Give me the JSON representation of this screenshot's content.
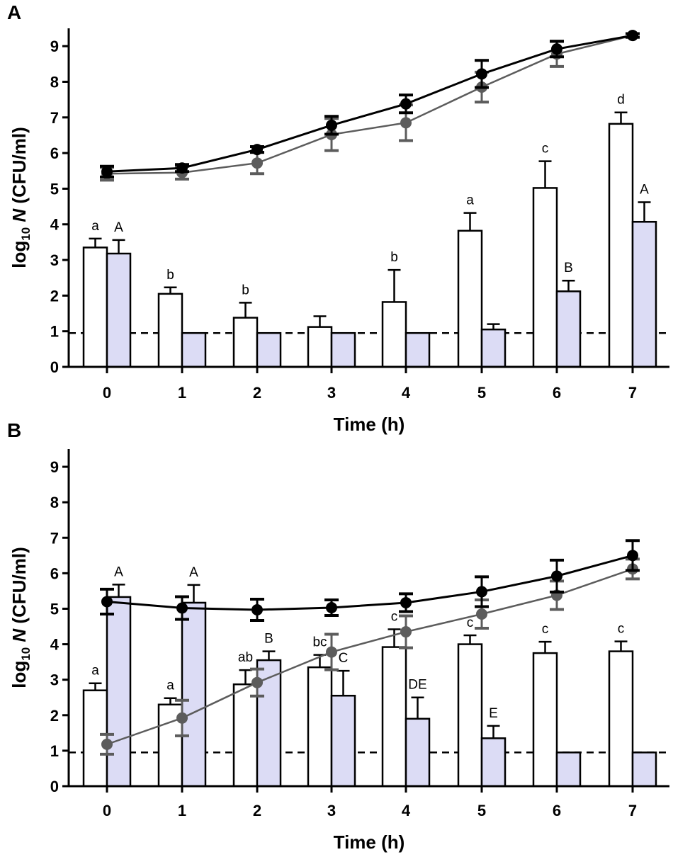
{
  "chart_data": [
    {
      "type": "bar",
      "panel_label": "A",
      "xlabel": "Time (h)",
      "ylabel_prefix": "log",
      "ylabel_sub": "10",
      "ylabel_var": "N",
      "ylabel_units": "(CFU/ml)",
      "categories": [
        "0",
        "1",
        "2",
        "3",
        "4",
        "5",
        "6",
        "7"
      ],
      "ylim": [
        0,
        9.5
      ],
      "yticks": [
        "0",
        "1",
        "2",
        "3",
        "4",
        "5",
        "6",
        "7",
        "8",
        "9"
      ],
      "detection_limit": 0.95,
      "bar_series": [
        {
          "name": "white bars",
          "fill": "#ffffff",
          "values": [
            3.35,
            2.05,
            1.38,
            1.12,
            1.82,
            3.82,
            5.02,
            6.82
          ],
          "errors": [
            0.25,
            0.18,
            0.42,
            0.3,
            0.9,
            0.5,
            0.75,
            0.32
          ],
          "labels": [
            "a",
            "b",
            "b",
            "",
            "b",
            "a",
            "c",
            "d"
          ]
        },
        {
          "name": "lavender bars",
          "fill": "#dcdcf5",
          "values": [
            3.18,
            0.95,
            0.95,
            0.95,
            0.95,
            1.05,
            2.12,
            4.07
          ],
          "errors": [
            0.38,
            0.0,
            0.0,
            0.0,
            0.0,
            0.15,
            0.3,
            0.55
          ],
          "labels": [
            "A",
            "",
            "",
            "",
            "",
            "",
            "B",
            "A"
          ]
        }
      ],
      "line_series": [
        {
          "name": "black line",
          "color": "#000000",
          "values": [
            5.48,
            5.58,
            6.1,
            6.78,
            7.38,
            8.22,
            8.92,
            9.3
          ],
          "errors": [
            0.15,
            0.1,
            0.08,
            0.25,
            0.25,
            0.38,
            0.22,
            0.05
          ]
        },
        {
          "name": "grey line",
          "color": "#5c5c5c",
          "values": [
            5.42,
            5.45,
            5.72,
            6.52,
            6.85,
            7.85,
            8.78,
            9.3
          ],
          "errors": [
            0.18,
            0.18,
            0.3,
            0.45,
            0.5,
            0.42,
            0.35,
            0.05
          ]
        }
      ]
    },
    {
      "type": "bar",
      "panel_label": "B",
      "xlabel": "Time (h)",
      "ylabel_prefix": "log",
      "ylabel_sub": "10",
      "ylabel_var": "N",
      "ylabel_units": "(CFU/ml)",
      "categories": [
        "0",
        "1",
        "2",
        "3",
        "4",
        "5",
        "6",
        "7"
      ],
      "ylim": [
        0,
        9.5
      ],
      "yticks": [
        "0",
        "1",
        "2",
        "3",
        "4",
        "5",
        "6",
        "7",
        "8",
        "9"
      ],
      "detection_limit": 0.95,
      "bar_series": [
        {
          "name": "white bars",
          "fill": "#ffffff",
          "values": [
            2.7,
            2.3,
            2.87,
            3.35,
            3.92,
            4.0,
            3.75,
            3.8
          ],
          "errors": [
            0.2,
            0.18,
            0.4,
            0.35,
            0.5,
            0.25,
            0.32,
            0.28
          ],
          "labels": [
            "a",
            "a",
            "ab",
            "bc",
            "c",
            "c",
            "c",
            "c"
          ]
        },
        {
          "name": "lavender bars",
          "fill": "#dcdcf5",
          "values": [
            5.33,
            5.17,
            3.55,
            2.55,
            1.9,
            1.35,
            0.95,
            0.95
          ],
          "errors": [
            0.35,
            0.5,
            0.25,
            0.7,
            0.6,
            0.35,
            0.0,
            0.0
          ],
          "labels": [
            "A",
            "A",
            "B",
            "C",
            "DE",
            "E",
            "",
            ""
          ]
        }
      ],
      "line_series": [
        {
          "name": "black line",
          "color": "#000000",
          "values": [
            5.2,
            5.02,
            4.97,
            5.03,
            5.17,
            5.48,
            5.92,
            6.5
          ],
          "errors": [
            0.35,
            0.32,
            0.3,
            0.22,
            0.25,
            0.42,
            0.45,
            0.42
          ]
        },
        {
          "name": "grey line",
          "color": "#5c5c5c",
          "values": [
            1.18,
            1.92,
            2.92,
            3.78,
            4.35,
            4.85,
            5.38,
            6.12
          ],
          "errors": [
            0.28,
            0.5,
            0.38,
            0.5,
            0.45,
            0.4,
            0.4,
            0.28
          ]
        }
      ]
    }
  ]
}
